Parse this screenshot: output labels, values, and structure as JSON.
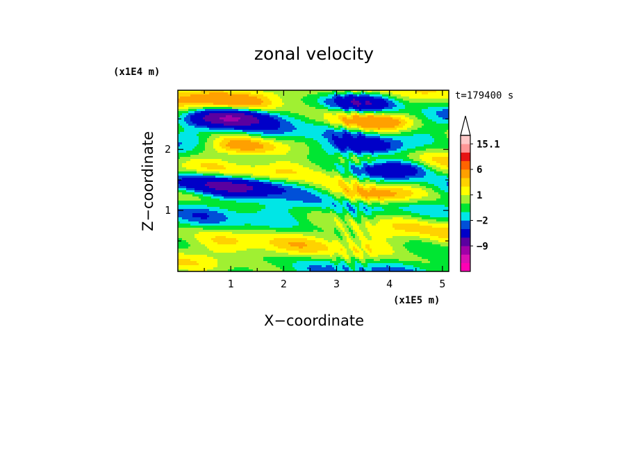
{
  "chart_data": {
    "type": "heatmap",
    "title": "zonal velocity",
    "xlabel": "X−coordinate",
    "ylabel": "Z−coordinate",
    "x_unit": "(x1E5 m)",
    "y_unit": "(x1E4 m)",
    "time_label": "t=179400 s",
    "xlim": [
      0,
      5.12
    ],
    "ylim": [
      0,
      2.97
    ],
    "x_ticks": [
      "1",
      "2",
      "3",
      "4",
      "5"
    ],
    "y_ticks": [
      "1",
      "2"
    ],
    "colorbar": {
      "levels": [
        -15.1,
        -12,
        -9,
        -6,
        -3,
        -2,
        -1,
        0,
        1,
        2,
        3,
        6,
        9,
        12,
        15.1
      ],
      "colors": [
        "#ff00b4",
        "#d90fb4",
        "#a000a8",
        "#5a00a0",
        "#0000c8",
        "#0050d8",
        "#00e6e6",
        "#00e632",
        "#a0f032",
        "#ffff00",
        "#ffd200",
        "#ffa000",
        "#ff6400",
        "#e61414",
        "#ff9696",
        "#ffc8c8"
      ],
      "labels": [
        "15.1",
        "6",
        "1",
        "−2",
        "−9"
      ],
      "extend_max": true
    },
    "field_structure": [
      {
        "kind": "negative",
        "x": 1.0,
        "z": 2.52,
        "amplitude": -9
      },
      {
        "kind": "negative",
        "x": 3.4,
        "z": 2.78,
        "amplitude": -6
      },
      {
        "kind": "negative",
        "x": 4.0,
        "z": 1.68,
        "amplitude": -6
      },
      {
        "kind": "negative",
        "x": 3.5,
        "z": 2.02,
        "amplitude": -5
      },
      {
        "kind": "negative",
        "x": 1.3,
        "z": 1.38,
        "amplitude": -6
      },
      {
        "kind": "negative",
        "x": 0.3,
        "z": 1.45,
        "amplitude": -5
      },
      {
        "kind": "positive",
        "x": 3.7,
        "z": 2.45,
        "amplitude": 6
      },
      {
        "kind": "positive",
        "x": 1.2,
        "z": 2.05,
        "amplitude": 5
      },
      {
        "kind": "positive",
        "x": 3.8,
        "z": 1.25,
        "amplitude": 5
      },
      {
        "kind": "positive",
        "x": 0.9,
        "z": 2.82,
        "amplitude": 3
      }
    ]
  }
}
